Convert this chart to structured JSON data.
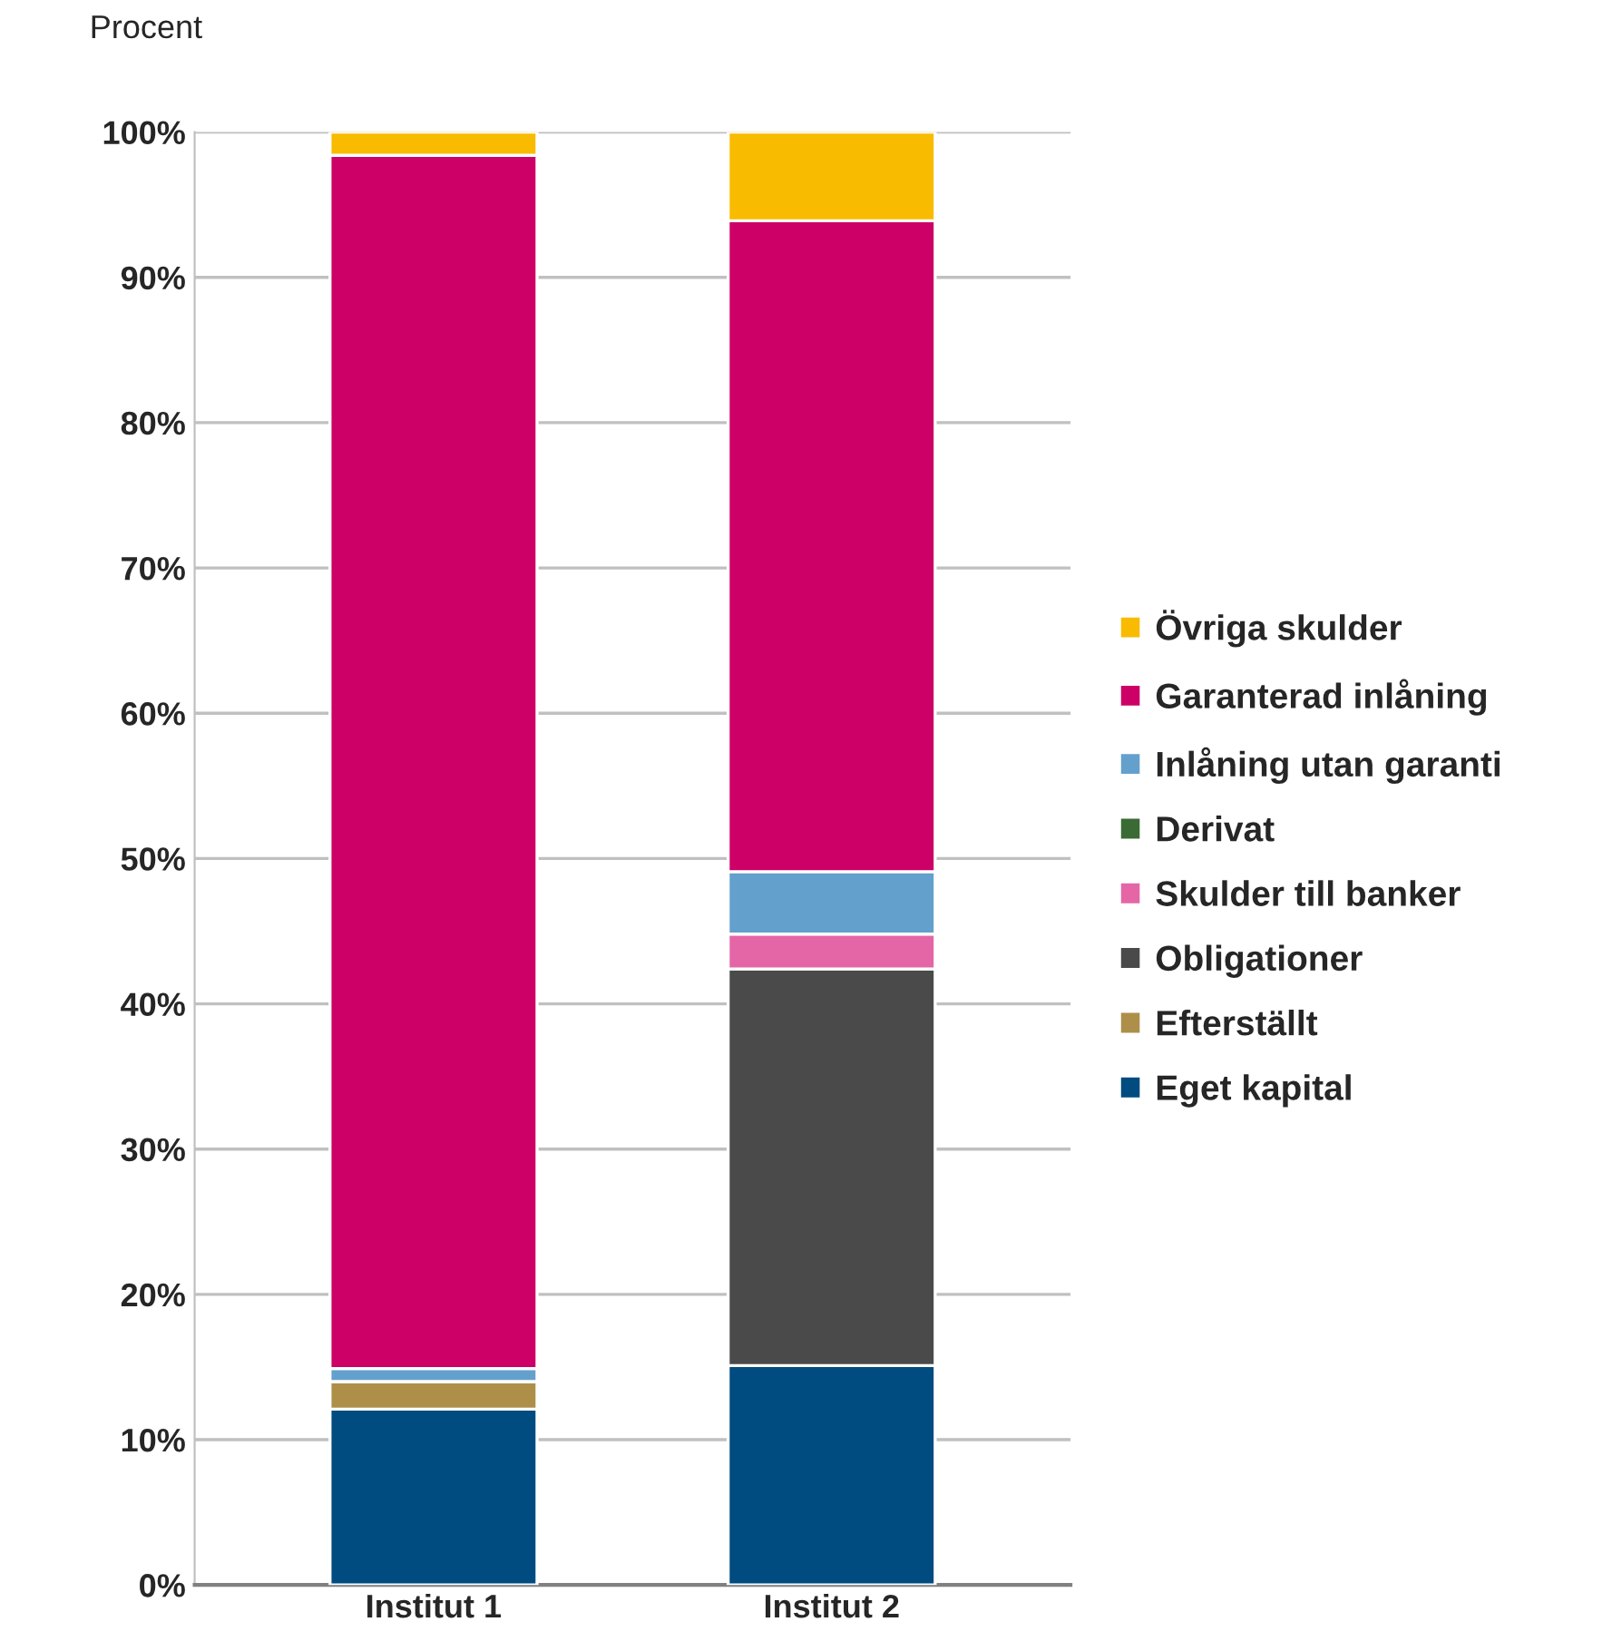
{
  "chart_data": {
    "type": "bar",
    "stacked": true,
    "ylabel": "Procent",
    "categories": [
      "Institut 1",
      "Institut 2"
    ],
    "series": [
      {
        "name": "Eget kapital",
        "color": "#004b7f",
        "values": [
          12.1,
          15.1
        ]
      },
      {
        "name": "Efterställt",
        "color": "#ad8f4a",
        "values": [
          1.9,
          0
        ]
      },
      {
        "name": "Obligationer",
        "color": "#4a4a4a",
        "values": [
          0,
          27.3
        ]
      },
      {
        "name": "Skulder till banker",
        "color": "#e466a6",
        "values": [
          0,
          2.4
        ]
      },
      {
        "name": "Derivat",
        "color": "#3a6b35",
        "values": [
          0,
          0
        ]
      },
      {
        "name": "Inlåning utan garanti",
        "color": "#64a0cc",
        "values": [
          0.9,
          4.3
        ]
      },
      {
        "name": "Garanterad inlåning",
        "color": "#cc0066",
        "values": [
          83.5,
          44.8
        ]
      },
      {
        "name": "Övriga skulder",
        "color": "#f9bb00",
        "values": [
          1.6,
          6.1
        ]
      }
    ],
    "ylim": [
      0,
      100
    ],
    "yticks": [
      {
        "value": 0,
        "label": "0%"
      },
      {
        "value": 10,
        "label": "10%"
      },
      {
        "value": 20,
        "label": "20%"
      },
      {
        "value": 30,
        "label": "30%"
      },
      {
        "value": 40,
        "label": "40%"
      },
      {
        "value": 50,
        "label": "50%"
      },
      {
        "value": 60,
        "label": "60%"
      },
      {
        "value": 70,
        "label": "70%"
      },
      {
        "value": 80,
        "label": "80%"
      },
      {
        "value": 90,
        "label": "90%"
      },
      {
        "value": 100,
        "label": "100%"
      }
    ],
    "grid": "y",
    "legend": "right"
  }
}
